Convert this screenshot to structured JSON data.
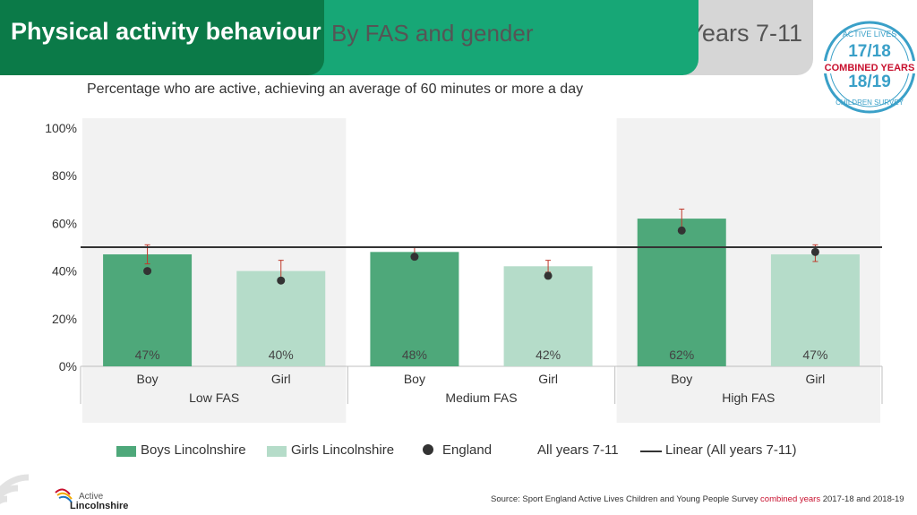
{
  "header": {
    "title": "Physical activity behaviour",
    "subtitle": "By FAS and gender",
    "years": "Years 7-11"
  },
  "badge": {
    "top_text": "ACTIVE LIVES",
    "year1": "17/18",
    "combined": "COMBINED YEARS",
    "year2": "18/19",
    "bottom_text": "CHILDREN SURVEY"
  },
  "chart_title": "Percentage who are active, achieving an average of 60 minutes or more a day",
  "chart_data": {
    "type": "bar",
    "groups": [
      "Low FAS",
      "Medium FAS",
      "High FAS"
    ],
    "categories": [
      "Boy",
      "Girl",
      "Boy",
      "Girl",
      "Boy",
      "Girl"
    ],
    "series": [
      {
        "name": "Boys Lincolnshire",
        "values": [
          47,
          null,
          48,
          null,
          62,
          null
        ],
        "color": "#4ea87a"
      },
      {
        "name": "Girls Lincolnshire",
        "values": [
          null,
          40,
          null,
          42,
          null,
          47
        ],
        "color": "#b5dcc9"
      }
    ],
    "bar_values": [
      47,
      40,
      48,
      42,
      62,
      47
    ],
    "bar_labels": [
      "47%",
      "40%",
      "48%",
      "42%",
      "62%",
      "47%"
    ],
    "error_high": [
      51,
      44.5,
      50,
      44.5,
      66,
      51
    ],
    "error_low": [
      43,
      35.5,
      46,
      39.5,
      58,
      44
    ],
    "england": {
      "name": "England",
      "values": [
        40,
        36,
        46,
        38,
        57,
        48
      ]
    },
    "all_years_line": {
      "name": "Linear (All years 7-11)",
      "value": 50
    },
    "ylim": [
      0,
      100
    ],
    "yticks": [
      "0%",
      "20%",
      "40%",
      "60%",
      "80%",
      "100%"
    ]
  },
  "legend": {
    "boys": "Boys Lincolnshire",
    "girls": "Girls Lincolnshire",
    "england": "England",
    "all_years": "All years 7-11",
    "linear": "Linear (All years 7-11)"
  },
  "source": {
    "prefix": "Source: Sport England Active Lives Children and Young People Survey ",
    "highlight": "combined years",
    "suffix": " 2017-18 and 2018-19"
  },
  "logo": {
    "line1": "Active",
    "line2": "Lincolnshire"
  },
  "colors": {
    "dark_green": "#0b7a48",
    "green": "#17a776",
    "boys": "#4ea87a",
    "girls": "#b5dcc9",
    "error": "#c0392b"
  }
}
